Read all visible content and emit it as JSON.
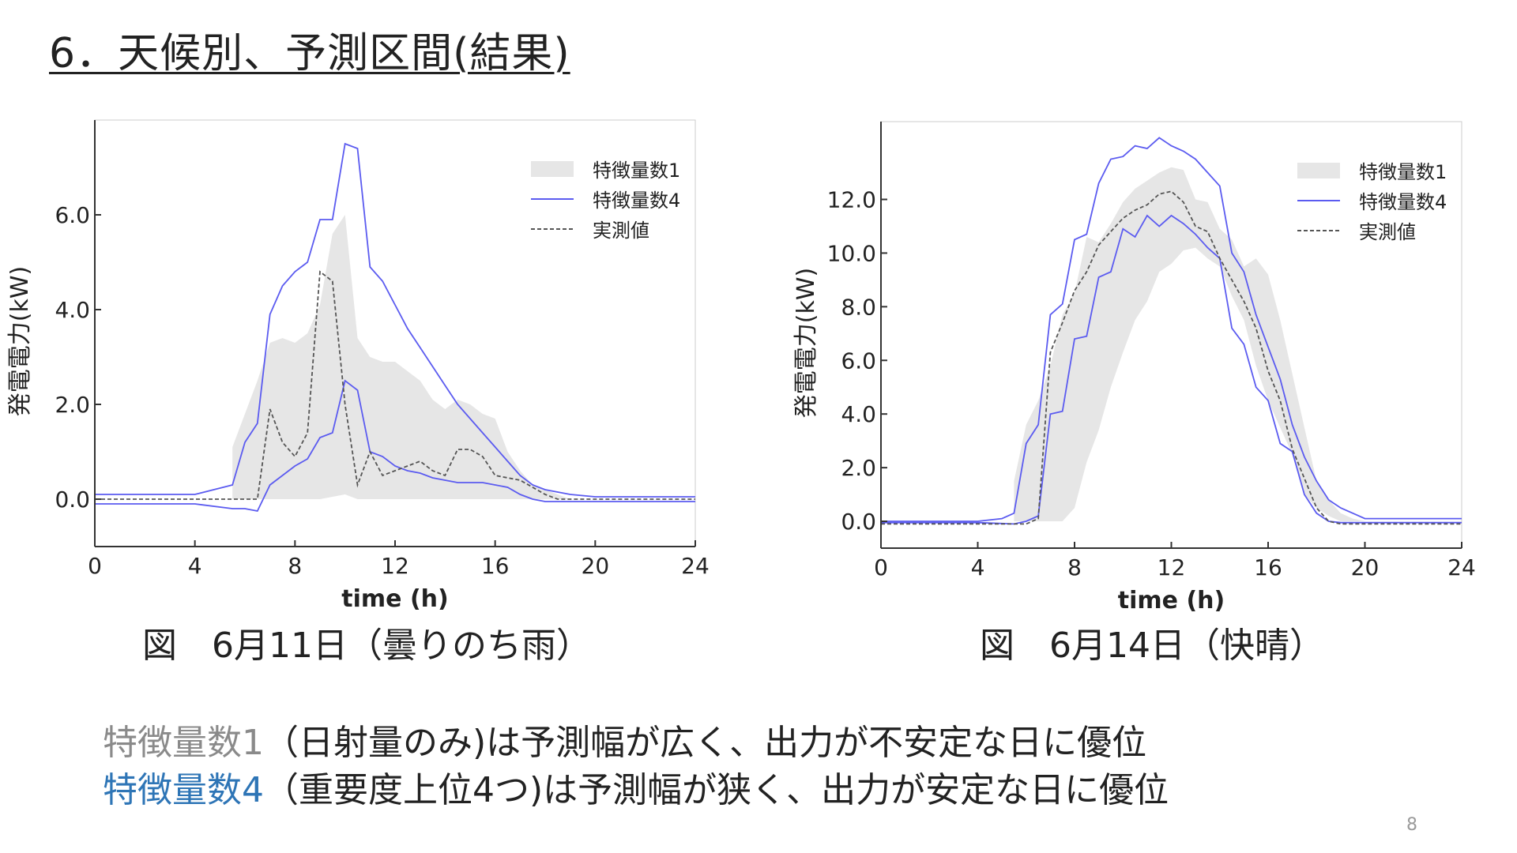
{
  "slide": {
    "title": "6．天候別、予測区間(結果)",
    "captions": [
      "図　6月11日（曇りのち雨）",
      "図　6月14日（快晴）"
    ],
    "notes": [
      {
        "lead": "特徴量数1",
        "lead_color": "#8a8a8a",
        "rest": "（日射量のみ)は予測幅が広く、出力が不安定な日に優位"
      },
      {
        "lead": "特徴量数4",
        "lead_color": "#2e75b6",
        "rest": "（重要度上位4つ)は予測幅が狭く、出力が安定な日に優位"
      }
    ],
    "page_number": "8"
  },
  "chart_data": [
    {
      "type": "area",
      "xlabel": "time (h)",
      "ylabel": "発電電力(kW)",
      "xlim": [
        0,
        24
      ],
      "ylim": [
        -1.0,
        8.0
      ],
      "xticks": [
        0,
        4,
        8,
        12,
        16,
        20,
        24
      ],
      "xtick_labels": [
        "0",
        "4",
        "8",
        "12",
        "16",
        "20",
        "24"
      ],
      "yticks": [
        0,
        2,
        4,
        6
      ],
      "ytick_labels": [
        "0.0",
        "2.0",
        "4.0",
        "6.0"
      ],
      "grid": false,
      "legend_position": "top-right",
      "legend": [
        "特徴量数1",
        "特徴量数4",
        "実測値"
      ],
      "colors": {
        "band": "#e6e6e6",
        "line": "#5b5bf0",
        "actual": "#555555"
      },
      "band": {
        "name": "特徴量数1",
        "x": [
          5.5,
          6,
          6.5,
          7,
          7.5,
          8,
          8.5,
          9,
          9.5,
          10,
          10.5,
          11,
          11.5,
          12,
          12.5,
          13,
          13.5,
          14,
          14.5,
          15,
          15.5,
          16,
          16.5,
          17,
          17.5,
          18,
          18.5,
          19
        ],
        "upper": [
          1.1,
          1.8,
          2.5,
          3.3,
          3.4,
          3.3,
          3.5,
          4.1,
          5.6,
          6.0,
          3.4,
          3.0,
          2.9,
          2.9,
          2.7,
          2.5,
          2.1,
          1.9,
          2.1,
          2.0,
          1.8,
          1.7,
          1.0,
          0.6,
          0.3,
          0.2,
          0.1,
          0.0
        ],
        "lower": [
          0,
          0,
          0,
          0,
          0,
          0,
          0,
          0,
          0.05,
          0.1,
          0,
          0,
          0,
          0,
          0,
          0,
          0,
          0,
          0,
          0,
          0,
          0,
          0,
          0,
          0,
          0,
          0,
          0
        ]
      },
      "series": [
        {
          "name": "特徴量数4",
          "upper_x": [
            0,
            2,
            4,
            5.5,
            6,
            6.5,
            7,
            7.5,
            8,
            8.5,
            9,
            9.5,
            10,
            10.5,
            11,
            11.5,
            12,
            12.5,
            13,
            13.5,
            14,
            14.5,
            15,
            15.5,
            16,
            16.5,
            17,
            17.5,
            18,
            18.5,
            19,
            20,
            24
          ],
          "upper_y": [
            0.1,
            0.1,
            0.1,
            0.3,
            1.2,
            1.6,
            3.9,
            4.5,
            4.8,
            5.0,
            5.9,
            5.9,
            7.5,
            7.4,
            4.9,
            4.6,
            4.1,
            3.6,
            3.2,
            2.8,
            2.4,
            2.0,
            1.7,
            1.4,
            1.1,
            0.8,
            0.5,
            0.3,
            0.2,
            0.15,
            0.1,
            0.05,
            0.05
          ],
          "lower_x": [
            0,
            2,
            4,
            5.5,
            6,
            6.5,
            7,
            7.5,
            8,
            8.5,
            9,
            9.5,
            10,
            10.5,
            11,
            11.5,
            12,
            12.5,
            13,
            13.5,
            14,
            14.5,
            15,
            15.5,
            16,
            16.5,
            17,
            17.5,
            18,
            19,
            20,
            24
          ],
          "lower_y": [
            -0.1,
            -0.1,
            -0.1,
            -0.2,
            -0.2,
            -0.25,
            0.3,
            0.5,
            0.7,
            0.85,
            1.3,
            1.4,
            2.5,
            2.3,
            1.0,
            0.9,
            0.7,
            0.6,
            0.55,
            0.45,
            0.4,
            0.35,
            0.35,
            0.35,
            0.3,
            0.25,
            0.1,
            0.0,
            -0.05,
            -0.05,
            -0.05,
            -0.05
          ]
        },
        {
          "name": "実測値",
          "x": [
            0,
            2,
            4,
            6,
            6.5,
            7,
            7.5,
            8,
            8.5,
            9,
            9.5,
            10,
            10.5,
            11,
            11.5,
            12,
            12.5,
            13,
            13.5,
            14,
            14.5,
            15,
            15.5,
            16,
            16.5,
            17,
            17.5,
            18,
            18.5,
            19,
            20,
            24
          ],
          "y": [
            0,
            0,
            0,
            0,
            0,
            1.9,
            1.2,
            0.9,
            1.4,
            4.8,
            4.6,
            2.0,
            0.3,
            1.0,
            0.5,
            0.6,
            0.7,
            0.8,
            0.6,
            0.5,
            1.05,
            1.05,
            0.9,
            0.5,
            0.45,
            0.4,
            0.25,
            0.1,
            0,
            0,
            0,
            0
          ]
        }
      ]
    },
    {
      "type": "area",
      "xlabel": "time (h)",
      "ylabel": "発電電力(kW)",
      "xlim": [
        0,
        24
      ],
      "ylim": [
        -1.0,
        14.9
      ],
      "xticks": [
        0,
        4,
        8,
        12,
        16,
        20,
        24
      ],
      "xtick_labels": [
        "0",
        "4",
        "8",
        "12",
        "16",
        "20",
        "24"
      ],
      "yticks": [
        0,
        2,
        4,
        6,
        8,
        10,
        12
      ],
      "ytick_labels": [
        "0.0",
        "2.0",
        "4.0",
        "6.0",
        "8.0",
        "10.0",
        "12.0"
      ],
      "grid": false,
      "legend_position": "top-right",
      "legend": [
        "特徴量数1",
        "特徴量数4",
        "実測値"
      ],
      "colors": {
        "band": "#e6e6e6",
        "line": "#5b5bf0",
        "actual": "#555555"
      },
      "band": {
        "name": "特徴量数1",
        "x": [
          5.5,
          6,
          6.5,
          7,
          7.5,
          8,
          8.5,
          9,
          9.5,
          10,
          10.5,
          11,
          11.5,
          12,
          12.5,
          13,
          13.5,
          14,
          14.5,
          15,
          15.5,
          16,
          16.5,
          17,
          17.5,
          18,
          18.5,
          19,
          19.5,
          20
        ],
        "upper": [
          1.5,
          3.6,
          4.5,
          5.8,
          7.7,
          8.5,
          10.6,
          10.4,
          11.1,
          11.9,
          12.4,
          12.7,
          13.0,
          13.2,
          13.1,
          12.0,
          11.9,
          10.9,
          10.5,
          9.5,
          9.8,
          9.2,
          7.5,
          5.5,
          3.5,
          1.5,
          0.8,
          0.3,
          0.1,
          0
        ],
        "lower": [
          0,
          0,
          0,
          0,
          0,
          0.5,
          2.2,
          3.4,
          5.0,
          6.3,
          7.5,
          8.2,
          9.3,
          9.6,
          10.1,
          10.2,
          9.8,
          9.5,
          8.4,
          7.5,
          5.8,
          4.5,
          3.5,
          2.5,
          1.0,
          0.5,
          0.2,
          0,
          0,
          0
        ]
      },
      "series": [
        {
          "name": "特徴量数4",
          "upper_x": [
            0,
            2,
            4,
            5,
            5.5,
            6,
            6.5,
            7,
            7.5,
            8,
            8.5,
            9,
            9.5,
            10,
            10.5,
            11,
            11.5,
            12,
            12.5,
            13,
            13.5,
            14,
            14.5,
            15,
            15.5,
            16,
            16.5,
            17,
            17.5,
            18,
            18.5,
            19,
            19.5,
            20,
            24
          ],
          "upper_y": [
            0.0,
            0.0,
            0.0,
            0.1,
            0.3,
            2.9,
            3.6,
            7.7,
            8.1,
            10.5,
            10.7,
            12.6,
            13.5,
            13.6,
            14.0,
            13.9,
            14.3,
            14.0,
            13.8,
            13.5,
            13.0,
            12.5,
            10.0,
            9.3,
            7.7,
            6.5,
            5.3,
            3.6,
            2.4,
            1.5,
            0.8,
            0.5,
            0.3,
            0.1,
            0.1
          ],
          "lower_x": [
            0,
            2,
            4,
            5.5,
            6,
            6.5,
            7,
            7.5,
            8,
            8.5,
            9,
            9.5,
            10,
            10.5,
            11,
            11.5,
            12,
            12.5,
            13,
            13.5,
            14,
            14.5,
            15,
            15.5,
            16,
            16.5,
            17,
            17.5,
            18,
            18.5,
            19,
            20,
            24
          ],
          "lower_y": [
            -0.05,
            -0.05,
            -0.05,
            -0.1,
            0.0,
            0.2,
            4.0,
            4.1,
            6.8,
            6.9,
            9.1,
            9.3,
            10.9,
            10.6,
            11.4,
            11.0,
            11.4,
            11.1,
            10.7,
            10.2,
            9.8,
            7.2,
            6.6,
            5.0,
            4.5,
            2.9,
            2.6,
            1.0,
            0.3,
            0.0,
            -0.05,
            -0.05,
            -0.05
          ]
        },
        {
          "name": "実測値",
          "x": [
            0,
            2,
            4,
            6,
            6.5,
            7,
            7.5,
            8,
            8.5,
            9,
            9.5,
            10,
            10.5,
            11,
            11.5,
            12,
            12.5,
            13,
            13.5,
            14,
            14.5,
            15,
            15.5,
            16,
            16.5,
            17,
            17.5,
            18,
            18.5,
            19,
            20,
            24
          ],
          "y": [
            -0.1,
            -0.1,
            -0.1,
            -0.1,
            0.1,
            6.3,
            7.4,
            8.6,
            9.3,
            10.3,
            10.8,
            11.3,
            11.6,
            11.8,
            12.2,
            12.3,
            11.9,
            11.0,
            10.8,
            9.8,
            9.0,
            8.2,
            7.2,
            5.6,
            4.5,
            2.7,
            1.6,
            0.5,
            0.0,
            -0.1,
            -0.1,
            -0.1
          ]
        }
      ]
    }
  ]
}
